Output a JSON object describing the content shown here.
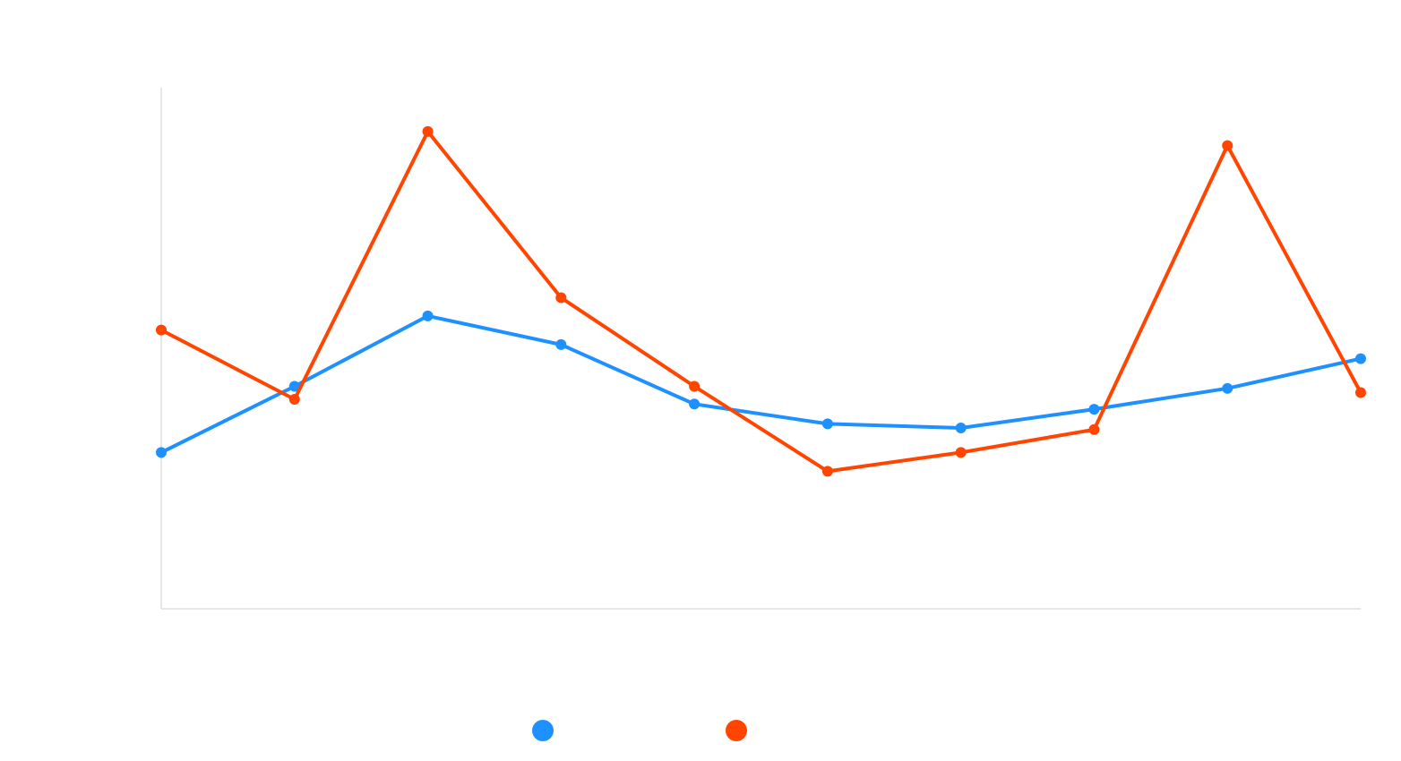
{
  "chart_data": {
    "type": "line",
    "x": [
      0,
      1,
      2,
      3,
      4,
      5,
      6,
      7,
      8,
      9
    ],
    "ylim": [
      0,
      100
    ],
    "grid": false,
    "legend_position": "bottom-center",
    "series": [
      {
        "color": "#1E90FF",
        "values": [
          30,
          42.7,
          56.2,
          50.7,
          39.3,
          35.5,
          34.7,
          38.3,
          42.3,
          48
        ]
      },
      {
        "color": "#FF4500",
        "values": [
          53.5,
          40.2,
          91.6,
          59.7,
          42.7,
          26.4,
          30,
          34.4,
          88.9,
          41.5
        ]
      }
    ]
  }
}
